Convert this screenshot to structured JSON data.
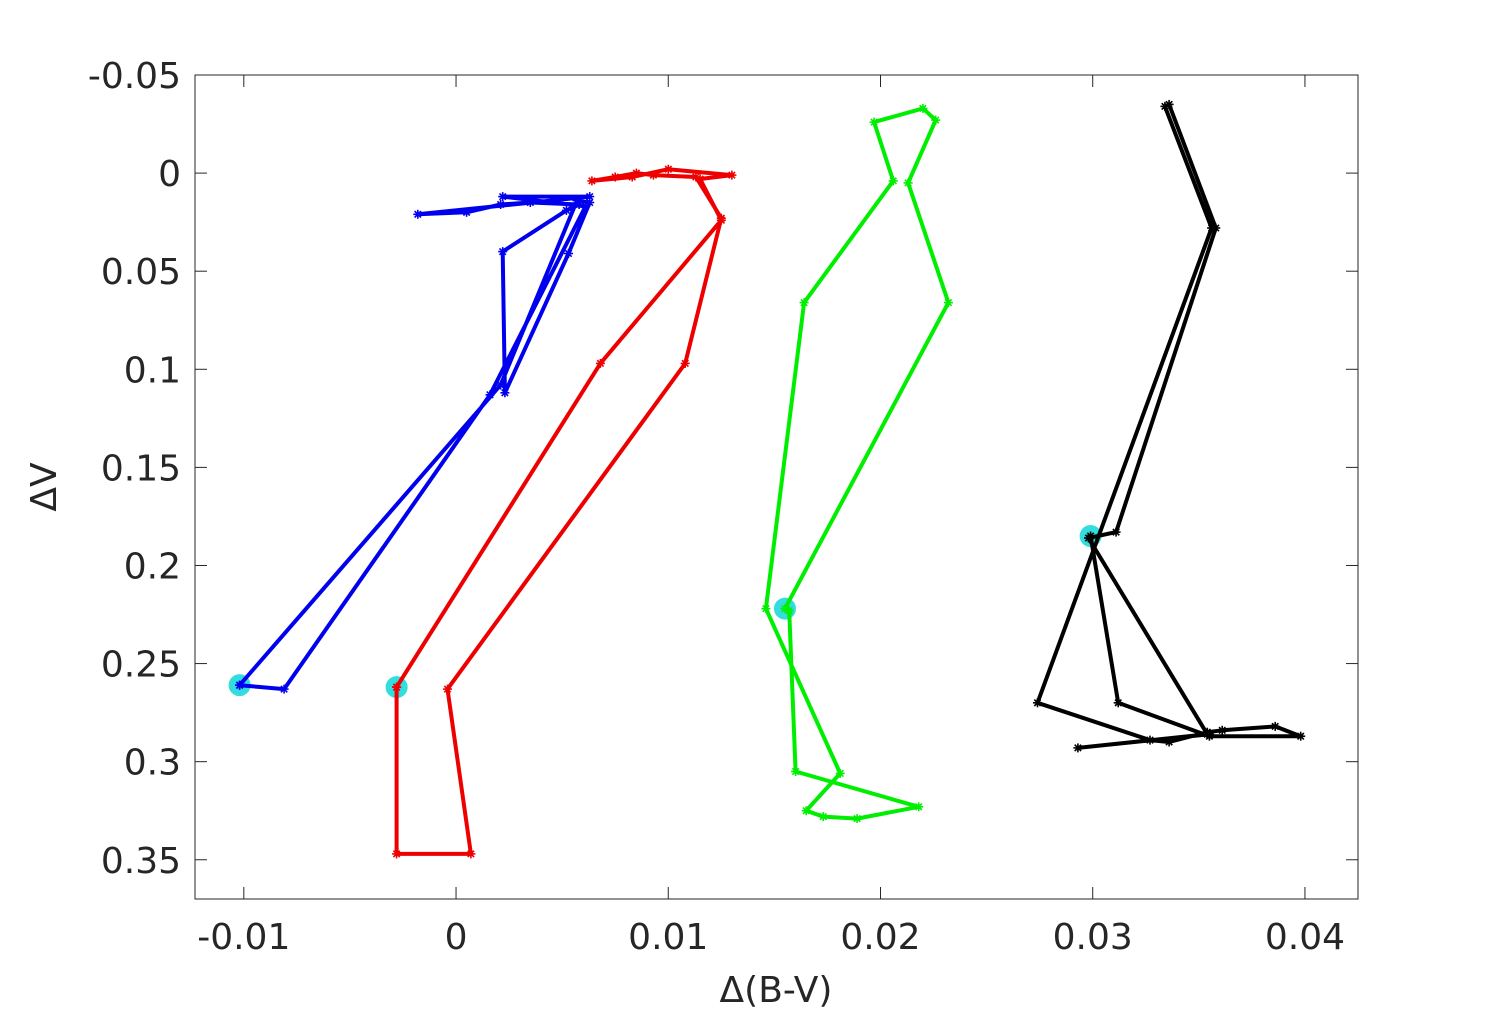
{
  "chart_data": {
    "type": "line",
    "title": "",
    "xlabel": "Δ(B-V)",
    "ylabel": "ΔV",
    "xlim": [
      -0.0123,
      0.0425
    ],
    "ylim": [
      -0.05,
      0.37
    ],
    "y_reversed": true,
    "grid": false,
    "xticks": [
      -0.01,
      0,
      0.01,
      0.02,
      0.03,
      0.04
    ],
    "xtick_labels": [
      "-0.01",
      "0",
      "0.01",
      "0.02",
      "0.03",
      "0.04"
    ],
    "yticks": [
      -0.05,
      0,
      0.05,
      0.1,
      0.15,
      0.2,
      0.25,
      0.3,
      0.35
    ],
    "ytick_labels": [
      "-0.05",
      "0",
      "0.05",
      "0.1",
      "0.15",
      "0.2",
      "0.25",
      "0.3",
      "0.35"
    ],
    "marker": "asterisk",
    "highlight_color": "#33dddd",
    "series": [
      {
        "color": "#0000ee",
        "start": [
          -0.0102,
          0.261
        ],
        "points": [
          [
            -0.0102,
            0.261
          ],
          [
            -0.0081,
            0.263
          ],
          [
            0.0016,
            0.113
          ],
          [
            0.0061,
            0.017
          ],
          [
            0.0022,
            0.012
          ],
          [
            0.0063,
            0.012
          ],
          [
            -0.0018,
            0.021
          ],
          [
            0.0005,
            0.02
          ],
          [
            0.0021,
            0.016
          ],
          [
            0.0035,
            0.015
          ],
          [
            0.0058,
            0.016
          ],
          [
            0.0052,
            0.019
          ],
          [
            0.0022,
            0.04
          ],
          [
            0.0023,
            0.112
          ],
          [
            0.0053,
            0.041
          ],
          [
            0.0063,
            0.015
          ],
          [
            0.0057,
            0.014
          ],
          [
            0.0021,
            0.108
          ],
          [
            -0.0102,
            0.261
          ]
        ]
      },
      {
        "color": "#ee0000",
        "start": [
          -0.0028,
          0.262
        ],
        "points": [
          [
            -0.0028,
            0.262
          ],
          [
            -0.0028,
            0.347
          ],
          [
            0.0007,
            0.347
          ],
          [
            -0.0004,
            0.263
          ],
          [
            0.0108,
            0.097
          ],
          [
            0.0125,
            0.023
          ],
          [
            0.0113,
            0.002
          ],
          [
            0.0093,
            0.001
          ],
          [
            0.0085,
            0.0
          ],
          [
            0.0075,
            0.002
          ],
          [
            0.0064,
            0.004
          ],
          [
            0.0083,
            0.002
          ],
          [
            0.01,
            -0.002
          ],
          [
            0.013,
            0.001
          ],
          [
            0.0115,
            0.003
          ],
          [
            0.0125,
            0.024
          ],
          [
            0.0068,
            0.097
          ],
          [
            -0.0028,
            0.262
          ]
        ]
      },
      {
        "color": "#00ee00",
        "start": [
          0.0155,
          0.222
        ],
        "points": [
          [
            0.0155,
            0.222
          ],
          [
            0.0232,
            0.066
          ],
          [
            0.0213,
            0.005
          ],
          [
            0.0226,
            -0.027
          ],
          [
            0.022,
            -0.033
          ],
          [
            0.0197,
            -0.026
          ],
          [
            0.0206,
            0.004
          ],
          [
            0.0164,
            0.066
          ],
          [
            0.0146,
            0.222
          ],
          [
            0.0181,
            0.306
          ],
          [
            0.0165,
            0.325
          ],
          [
            0.0173,
            0.328
          ],
          [
            0.0189,
            0.329
          ],
          [
            0.0218,
            0.323
          ],
          [
            0.016,
            0.305
          ],
          [
            0.0157,
            0.223
          ]
        ]
      },
      {
        "color": "#000000",
        "start": [
          0.0299,
          0.185
        ],
        "points": [
          [
            0.0299,
            0.185
          ],
          [
            0.0312,
            0.27
          ],
          [
            0.0355,
            0.287
          ],
          [
            0.0398,
            0.287
          ],
          [
            0.0386,
            0.282
          ],
          [
            0.0361,
            0.284
          ],
          [
            0.0354,
            0.285
          ],
          [
            0.0336,
            0.29
          ],
          [
            0.0327,
            0.289
          ],
          [
            0.0274,
            0.27
          ],
          [
            0.0356,
            0.028
          ],
          [
            0.0334,
            -0.034
          ],
          [
            0.0336,
            -0.035
          ],
          [
            0.0358,
            0.028
          ],
          [
            0.0311,
            0.183
          ],
          [
            0.0298,
            0.186
          ],
          [
            0.0354,
            0.286
          ],
          [
            0.0293,
            0.293
          ],
          [
            0.0355,
            0.286
          ]
        ]
      }
    ]
  }
}
